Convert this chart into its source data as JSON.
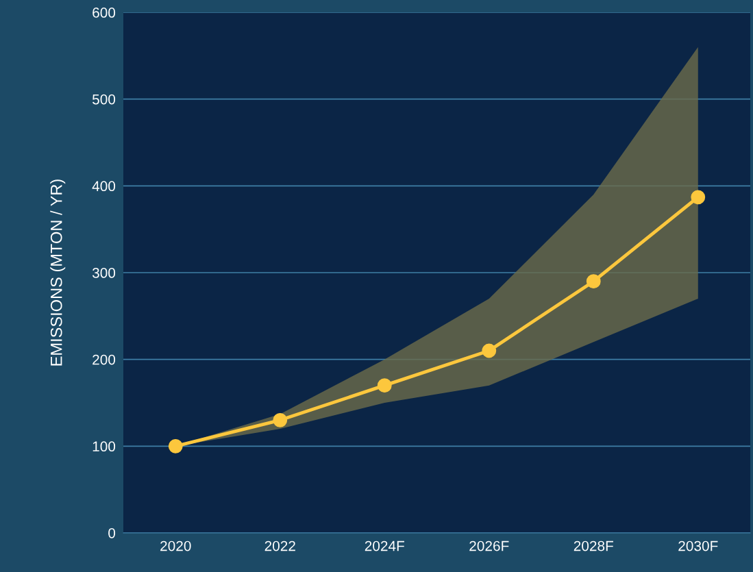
{
  "chart_data": {
    "type": "line",
    "ylabel": "EMISSIONS (MTON / YR)",
    "categories": [
      "2020",
      "2022",
      "2024F",
      "2026F",
      "2028F",
      "2030F"
    ],
    "series": [
      {
        "color": "#fcc73d",
        "values": [
          100,
          130,
          170,
          210,
          290,
          387
        ],
        "lower": [
          100,
          120,
          150,
          170,
          220,
          270
        ],
        "upper": [
          100,
          137,
          200,
          270,
          390,
          560
        ]
      }
    ],
    "ylim": [
      0,
      600
    ],
    "yticks": [
      0,
      100,
      200,
      300,
      400,
      500,
      600
    ],
    "grid": "y",
    "marker": "circle",
    "line_style": "solid"
  }
}
